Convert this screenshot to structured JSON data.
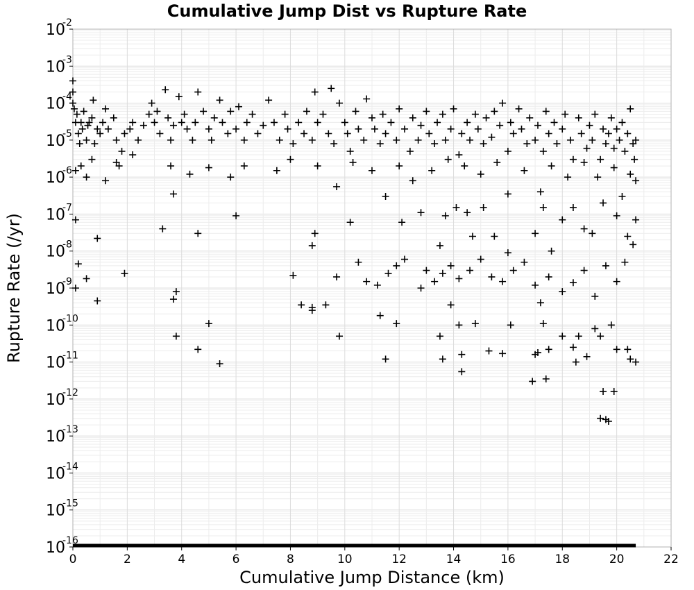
{
  "chart_data": {
    "type": "scatter",
    "title": "Cumulative Jump Dist vs Rupture Rate",
    "xlabel": "Cumulative Jump Distance (km)",
    "ylabel": "Rupture Rate (/yr)",
    "xlim": [
      0,
      22
    ],
    "ylim": [
      1e-16,
      0.01
    ],
    "yscale": "log",
    "grid": true,
    "legend": "none",
    "marker": "plus",
    "marker_color": "#000000",
    "x_tick_labels": [
      "0",
      "2",
      "4",
      "6",
      "8",
      "10",
      "12",
      "14",
      "16",
      "18",
      "20",
      "22"
    ],
    "y_tick_labels": [
      {
        "base": "10",
        "exp": "-2"
      },
      {
        "base": "10",
        "exp": "-3"
      },
      {
        "base": "10",
        "exp": "-4"
      },
      {
        "base": "10",
        "exp": "-5"
      },
      {
        "base": "10",
        "exp": "-6"
      },
      {
        "base": "10",
        "exp": "-7"
      },
      {
        "base": "10",
        "exp": "-8"
      },
      {
        "base": "10",
        "exp": "-9"
      },
      {
        "base": "10",
        "exp": "-10"
      },
      {
        "base": "10",
        "exp": "-11"
      },
      {
        "base": "10",
        "exp": "-12"
      },
      {
        "base": "10",
        "exp": "-13"
      },
      {
        "base": "10",
        "exp": "-14"
      },
      {
        "base": "10",
        "exp": "-15"
      },
      {
        "base": "10",
        "exp": "-16"
      }
    ],
    "floor_series": {
      "y": 1e-16,
      "x_range": [
        0,
        20.7
      ]
    },
    "points": [
      [
        0.0,
        0.0004
      ],
      [
        0.0,
        0.0002
      ],
      [
        0.0,
        0.0001
      ],
      [
        0.05,
        7e-05
      ],
      [
        0.1,
        3e-05
      ],
      [
        0.15,
        5e-05
      ],
      [
        0.2,
        1.5e-05
      ],
      [
        0.25,
        8e-06
      ],
      [
        0.3,
        3e-05
      ],
      [
        0.35,
        2e-05
      ],
      [
        0.4,
        6e-05
      ],
      [
        0.5,
        1e-05
      ],
      [
        0.55,
        2.5e-05
      ],
      [
        0.6,
        3e-05
      ],
      [
        0.7,
        4e-05
      ],
      [
        0.75,
        0.00012
      ],
      [
        0.8,
        8e-06
      ],
      [
        0.9,
        2e-05
      ],
      [
        1.0,
        1.5e-05
      ],
      [
        1.1,
        3e-05
      ],
      [
        1.2,
        7e-05
      ],
      [
        1.3,
        2e-05
      ],
      [
        1.5,
        4e-05
      ],
      [
        1.6,
        1e-05
      ],
      [
        1.7,
        2e-06
      ],
      [
        1.8,
        5e-06
      ],
      [
        1.9,
        1.5e-05
      ],
      [
        2.1,
        2e-05
      ],
      [
        2.2,
        3e-05
      ],
      [
        2.4,
        1e-05
      ],
      [
        2.6,
        2.5e-05
      ],
      [
        2.8,
        5e-05
      ],
      [
        2.9,
        0.0001
      ],
      [
        3.0,
        3e-05
      ],
      [
        3.1,
        6e-05
      ],
      [
        3.2,
        1.5e-05
      ],
      [
        3.4,
        0.00023
      ],
      [
        3.5,
        4e-05
      ],
      [
        3.6,
        1e-05
      ],
      [
        3.7,
        2.5e-05
      ],
      [
        3.9,
        0.00015
      ],
      [
        4.0,
        3e-05
      ],
      [
        4.1,
        5e-05
      ],
      [
        4.2,
        2e-05
      ],
      [
        4.4,
        1e-05
      ],
      [
        4.5,
        3e-05
      ],
      [
        4.6,
        0.0002
      ],
      [
        4.8,
        6e-05
      ],
      [
        5.0,
        2e-05
      ],
      [
        5.1,
        1e-05
      ],
      [
        5.2,
        4e-05
      ],
      [
        5.4,
        0.00012
      ],
      [
        5.5,
        3e-05
      ],
      [
        5.7,
        1.5e-05
      ],
      [
        5.8,
        6e-05
      ],
      [
        6.0,
        2e-05
      ],
      [
        6.1,
        8e-05
      ],
      [
        6.3,
        1e-05
      ],
      [
        6.4,
        3e-05
      ],
      [
        6.6,
        5e-05
      ],
      [
        6.8,
        1.5e-05
      ],
      [
        7.0,
        2.5e-05
      ],
      [
        7.2,
        0.00012
      ],
      [
        7.4,
        3e-05
      ],
      [
        7.6,
        1e-05
      ],
      [
        7.8,
        5e-05
      ],
      [
        7.9,
        2e-05
      ],
      [
        8.1,
        8e-06
      ],
      [
        8.3,
        3e-05
      ],
      [
        8.5,
        1.5e-05
      ],
      [
        8.6,
        6e-05
      ],
      [
        8.8,
        1e-05
      ],
      [
        8.9,
        0.0002
      ],
      [
        9.0,
        3e-05
      ],
      [
        9.2,
        5e-05
      ],
      [
        9.4,
        1.5e-05
      ],
      [
        9.5,
        0.00025
      ],
      [
        9.6,
        8e-06
      ],
      [
        9.8,
        0.0001
      ],
      [
        10.0,
        3e-05
      ],
      [
        10.1,
        1.5e-05
      ],
      [
        10.2,
        5e-06
      ],
      [
        10.4,
        6e-05
      ],
      [
        10.5,
        2e-05
      ],
      [
        10.7,
        1e-05
      ],
      [
        10.8,
        0.00013
      ],
      [
        11.0,
        4e-05
      ],
      [
        11.1,
        2e-05
      ],
      [
        11.3,
        8e-06
      ],
      [
        11.4,
        5e-05
      ],
      [
        11.5,
        1.5e-05
      ],
      [
        11.7,
        3e-05
      ],
      [
        11.9,
        1e-05
      ],
      [
        12.0,
        7e-05
      ],
      [
        12.2,
        2e-05
      ],
      [
        12.4,
        5e-06
      ],
      [
        12.5,
        4e-05
      ],
      [
        12.7,
        1e-05
      ],
      [
        12.8,
        2.5e-05
      ],
      [
        13.0,
        6e-05
      ],
      [
        13.1,
        1.5e-05
      ],
      [
        13.3,
        8e-06
      ],
      [
        13.4,
        3e-05
      ],
      [
        13.6,
        5e-05
      ],
      [
        13.7,
        1e-05
      ],
      [
        13.9,
        2e-05
      ],
      [
        14.0,
        7e-05
      ],
      [
        14.2,
        4e-06
      ],
      [
        14.3,
        1.5e-05
      ],
      [
        14.5,
        3e-05
      ],
      [
        14.6,
        1e-05
      ],
      [
        14.8,
        5e-05
      ],
      [
        14.9,
        2e-05
      ],
      [
        15.1,
        8e-06
      ],
      [
        15.2,
        4e-05
      ],
      [
        15.4,
        1.2e-05
      ],
      [
        15.5,
        6e-05
      ],
      [
        15.7,
        2.5e-05
      ],
      [
        15.8,
        0.0001
      ],
      [
        16.0,
        5e-06
      ],
      [
        16.1,
        3e-05
      ],
      [
        16.2,
        1.5e-05
      ],
      [
        16.4,
        7e-05
      ],
      [
        16.5,
        2e-05
      ],
      [
        16.7,
        8e-06
      ],
      [
        16.8,
        4e-05
      ],
      [
        17.0,
        1e-05
      ],
      [
        17.1,
        2.5e-05
      ],
      [
        17.3,
        5e-06
      ],
      [
        17.4,
        6e-05
      ],
      [
        17.5,
        1.5e-05
      ],
      [
        17.7,
        3e-05
      ],
      [
        17.8,
        8e-06
      ],
      [
        18.0,
        2e-05
      ],
      [
        18.1,
        5e-05
      ],
      [
        18.3,
        1e-05
      ],
      [
        18.4,
        3e-06
      ],
      [
        18.6,
        4e-05
      ],
      [
        18.7,
        1.5e-05
      ],
      [
        18.9,
        6e-06
      ],
      [
        19.0,
        2.5e-05
      ],
      [
        19.1,
        1e-05
      ],
      [
        19.2,
        5e-05
      ],
      [
        19.4,
        3e-06
      ],
      [
        19.5,
        2e-05
      ],
      [
        19.6,
        8e-06
      ],
      [
        19.7,
        1.5e-05
      ],
      [
        19.8,
        4e-05
      ],
      [
        19.9,
        6e-06
      ],
      [
        20.0,
        2e-05
      ],
      [
        20.1,
        1e-05
      ],
      [
        20.2,
        3e-05
      ],
      [
        20.3,
        5e-06
      ],
      [
        20.4,
        1.5e-05
      ],
      [
        20.5,
        7e-05
      ],
      [
        20.6,
        8e-06
      ],
      [
        20.7,
        1e-05
      ],
      [
        20.65,
        3e-06
      ],
      [
        0.1,
        1.5e-06
      ],
      [
        0.3,
        2e-06
      ],
      [
        0.5,
        1e-06
      ],
      [
        0.7,
        3e-06
      ],
      [
        1.2,
        8e-07
      ],
      [
        1.6,
        2.5e-06
      ],
      [
        2.2,
        4e-06
      ],
      [
        3.6,
        2e-06
      ],
      [
        3.7,
        3.5e-07
      ],
      [
        4.3,
        1.2e-06
      ],
      [
        5.0,
        1.8e-06
      ],
      [
        5.8,
        1e-06
      ],
      [
        6.3,
        2e-06
      ],
      [
        7.5,
        1.5e-06
      ],
      [
        8.0,
        3e-06
      ],
      [
        9.0,
        2e-06
      ],
      [
        9.7,
        5.5e-07
      ],
      [
        10.3,
        2.5e-06
      ],
      [
        11.0,
        1.5e-06
      ],
      [
        11.5,
        3e-07
      ],
      [
        12.0,
        2e-06
      ],
      [
        12.5,
        8e-07
      ],
      [
        13.2,
        1.5e-06
      ],
      [
        13.8,
        3e-06
      ],
      [
        14.4,
        2e-06
      ],
      [
        15.0,
        1.2e-06
      ],
      [
        15.6,
        2.5e-06
      ],
      [
        16.0,
        3.5e-07
      ],
      [
        16.6,
        1.5e-06
      ],
      [
        17.2,
        4e-07
      ],
      [
        17.6,
        2e-06
      ],
      [
        18.2,
        1e-06
      ],
      [
        18.8,
        2.5e-06
      ],
      [
        19.3,
        1e-06
      ],
      [
        19.9,
        1.8e-06
      ],
      [
        20.2,
        3e-07
      ],
      [
        20.5,
        1.2e-06
      ],
      [
        20.7,
        8e-07
      ],
      [
        0.1,
        7e-08
      ],
      [
        0.9,
        2.2e-08
      ],
      [
        3.3,
        4e-08
      ],
      [
        4.6,
        3e-08
      ],
      [
        6.0,
        9e-08
      ],
      [
        8.8,
        1.4e-08
      ],
      [
        8.9,
        3e-08
      ],
      [
        10.2,
        6e-08
      ],
      [
        12.1,
        6e-08
      ],
      [
        12.8,
        1.1e-07
      ],
      [
        13.5,
        1.4e-08
      ],
      [
        13.7,
        9e-08
      ],
      [
        14.1,
        1.5e-07
      ],
      [
        14.5,
        1.1e-07
      ],
      [
        14.7,
        2.5e-08
      ],
      [
        15.1,
        1.5e-07
      ],
      [
        15.5,
        2.5e-08
      ],
      [
        16.0,
        9e-09
      ],
      [
        17.0,
        3e-08
      ],
      [
        17.3,
        1.5e-07
      ],
      [
        17.6,
        1e-08
      ],
      [
        18.0,
        7e-08
      ],
      [
        18.4,
        1.5e-07
      ],
      [
        18.8,
        4e-08
      ],
      [
        19.1,
        3e-08
      ],
      [
        19.5,
        2e-07
      ],
      [
        20.0,
        9e-08
      ],
      [
        20.4,
        2.5e-08
      ],
      [
        20.6,
        1.5e-08
      ],
      [
        20.7,
        7e-08
      ],
      [
        0.2,
        4.5e-09
      ],
      [
        0.1,
        1e-09
      ],
      [
        0.5,
        1.8e-09
      ],
      [
        0.9,
        4.5e-10
      ],
      [
        1.9,
        2.5e-09
      ],
      [
        3.7,
        5e-10
      ],
      [
        3.8,
        8e-10
      ],
      [
        8.1,
        2.2e-09
      ],
      [
        9.7,
        2e-09
      ],
      [
        10.5,
        5e-09
      ],
      [
        10.8,
        1.5e-09
      ],
      [
        11.2,
        1.2e-09
      ],
      [
        11.6,
        2.5e-09
      ],
      [
        11.9,
        4e-09
      ],
      [
        12.2,
        6e-09
      ],
      [
        12.8,
        1e-09
      ],
      [
        13.0,
        3e-09
      ],
      [
        13.3,
        1.5e-09
      ],
      [
        13.6,
        2.5e-09
      ],
      [
        13.9,
        4e-09
      ],
      [
        14.2,
        1.8e-09
      ],
      [
        14.6,
        3e-09
      ],
      [
        15.0,
        6e-09
      ],
      [
        15.4,
        2e-09
      ],
      [
        15.8,
        1.5e-09
      ],
      [
        16.2,
        3e-09
      ],
      [
        16.6,
        5e-09
      ],
      [
        17.0,
        1.2e-09
      ],
      [
        17.2,
        4e-10
      ],
      [
        17.5,
        2e-09
      ],
      [
        18.0,
        8e-10
      ],
      [
        18.4,
        1.4e-09
      ],
      [
        18.8,
        3e-09
      ],
      [
        19.2,
        6e-10
      ],
      [
        19.6,
        4e-09
      ],
      [
        20.0,
        1.5e-09
      ],
      [
        20.3,
        5e-09
      ],
      [
        3.8,
        5e-11
      ],
      [
        5.0,
        1.1e-10
      ],
      [
        4.6,
        2.2e-11
      ],
      [
        5.4,
        9e-12
      ],
      [
        8.4,
        3.5e-10
      ],
      [
        8.8,
        2.5e-10
      ],
      [
        8.8,
        3e-10
      ],
      [
        9.3,
        3.5e-10
      ],
      [
        9.8,
        5e-11
      ],
      [
        11.3,
        1.8e-10
      ],
      [
        11.5,
        1.2e-11
      ],
      [
        11.9,
        1.1e-10
      ],
      [
        13.5,
        5e-11
      ],
      [
        13.6,
        1.2e-11
      ],
      [
        13.9,
        3.5e-10
      ],
      [
        14.2,
        1e-10
      ],
      [
        14.3,
        1.6e-11
      ],
      [
        14.3,
        5.5e-12
      ],
      [
        14.8,
        1.1e-10
      ],
      [
        15.3,
        2e-11
      ],
      [
        15.8,
        1.7e-11
      ],
      [
        16.1,
        1e-10
      ],
      [
        17.0,
        1.6e-11
      ],
      [
        17.1,
        1.8e-11
      ],
      [
        17.3,
        1.1e-10
      ],
      [
        17.5,
        2.2e-11
      ],
      [
        18.0,
        5e-11
      ],
      [
        18.4,
        2.5e-11
      ],
      [
        18.5,
        1e-11
      ],
      [
        18.6,
        5e-11
      ],
      [
        18.9,
        1.4e-11
      ],
      [
        19.2,
        8e-11
      ],
      [
        19.4,
        5e-11
      ],
      [
        19.8,
        1e-10
      ],
      [
        20.0,
        2.2e-11
      ],
      [
        20.4,
        2.2e-11
      ],
      [
        20.5,
        1.2e-11
      ],
      [
        20.7,
        1e-11
      ],
      [
        16.9,
        3e-12
      ],
      [
        17.4,
        3.5e-12
      ],
      [
        19.5,
        1.6e-12
      ],
      [
        19.9,
        1.6e-12
      ],
      [
        19.4,
        3e-13
      ],
      [
        19.6,
        2.8e-13
      ],
      [
        19.7,
        2.5e-13
      ]
    ]
  }
}
